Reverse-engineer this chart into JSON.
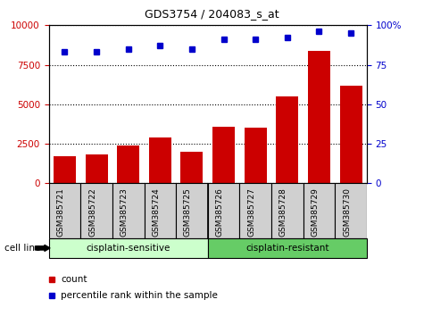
{
  "title": "GDS3754 / 204083_s_at",
  "categories": [
    "GSM385721",
    "GSM385722",
    "GSM385723",
    "GSM385724",
    "GSM385725",
    "GSM385726",
    "GSM385727",
    "GSM385728",
    "GSM385729",
    "GSM385730"
  ],
  "counts": [
    1700,
    1800,
    2400,
    2900,
    2000,
    3600,
    3500,
    5500,
    8400,
    6200
  ],
  "percentiles": [
    83,
    83,
    85,
    87,
    85,
    91,
    91,
    92,
    96,
    95
  ],
  "bar_color": "#cc0000",
  "dot_color": "#0000cc",
  "left_ylim": [
    0,
    10000
  ],
  "right_ylim": [
    0,
    100
  ],
  "left_yticks": [
    0,
    2500,
    5000,
    7500,
    10000
  ],
  "right_yticks": [
    0,
    25,
    50,
    75,
    100
  ],
  "left_yticklabels": [
    "0",
    "2500",
    "5000",
    "7500",
    "10000"
  ],
  "right_yticklabels": [
    "0",
    "25",
    "50",
    "75",
    "100%"
  ],
  "group1_label": "cisplatin-sensitive",
  "group2_label": "cisplatin-resistant",
  "group1_indices": [
    0,
    1,
    2,
    3,
    4
  ],
  "group2_indices": [
    5,
    6,
    7,
    8,
    9
  ],
  "cell_line_label": "cell line",
  "legend_count_label": "count",
  "legend_percentile_label": "percentile rank within the sample",
  "group1_color": "#ccffcc",
  "group2_color": "#66cc66",
  "tick_area_color": "#d0d0d0",
  "plot_bg_color": "#ffffff",
  "divider_index": 4.5
}
